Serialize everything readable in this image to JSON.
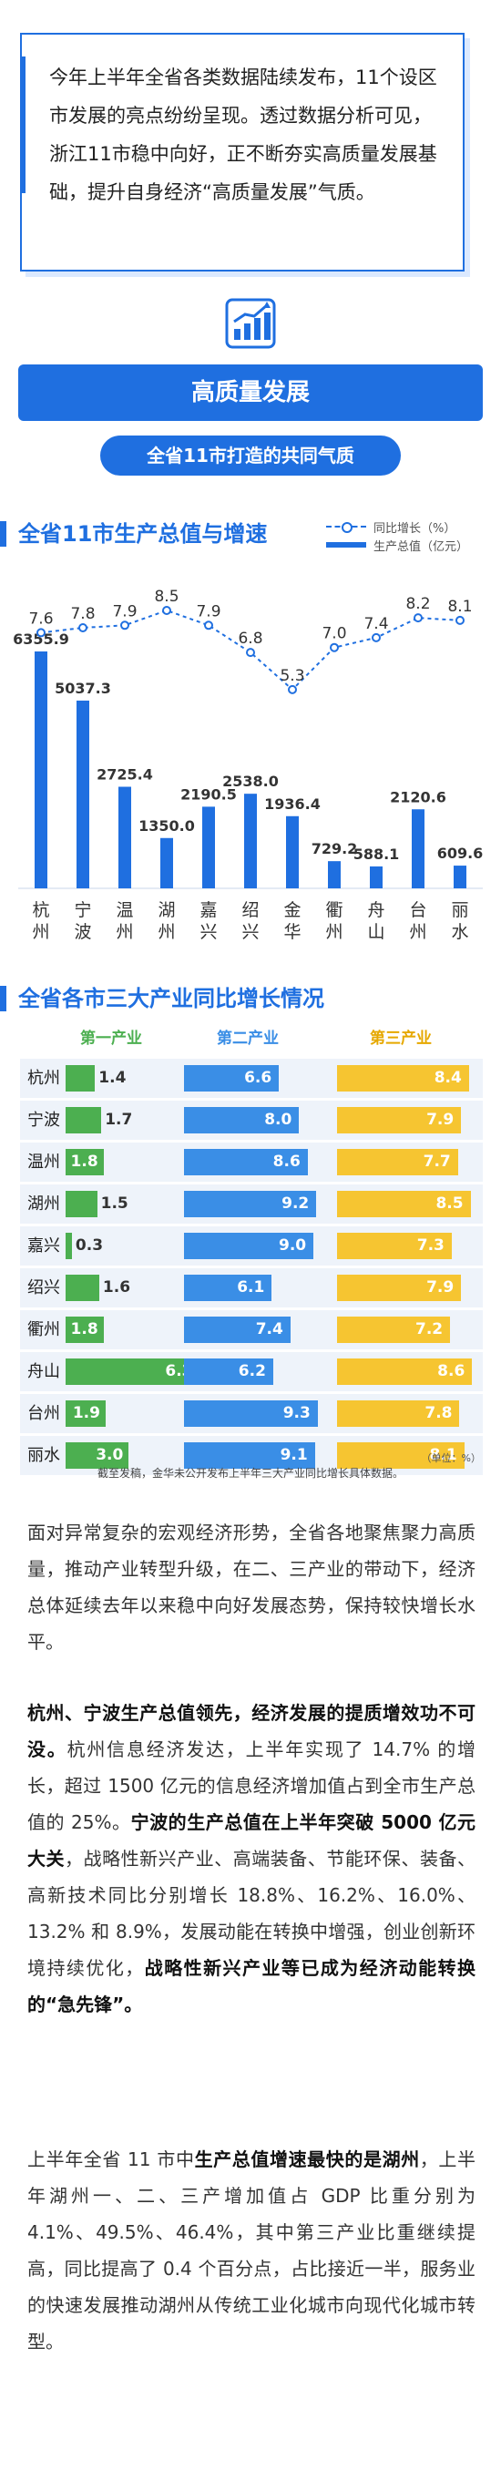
{
  "intro": {
    "text": "今年上半年全省各类数据陆续发布，11个设区市发展的亮点纷纷呈现。透过数据分析可见，浙江11市稳中向好，正不断夯实高质量发展基础，提升自身经济“高质量发展”气质。"
  },
  "banner": {
    "title": "高质量发展",
    "subtitle": "全省11市打造的共同气质"
  },
  "icons": {
    "header_icon": "bar-chart-growth-icon"
  },
  "colors": {
    "accent": "#1f6fe0",
    "primary": "#4caf50",
    "secondary": "#3a8ee6",
    "tertiary": "#f6c531"
  },
  "section1": {
    "title": "全省11市生产总值与增速",
    "legend_growth": "同比增长（%）",
    "legend_gdp": "生产总值（亿元）"
  },
  "chart_data": [
    {
      "type": "bar",
      "title": "全省11市生产总值与增速",
      "categories": [
        "杭州",
        "宁波",
        "温州",
        "湖州",
        "嘉兴",
        "绍兴",
        "金华",
        "衢州",
        "舟山",
        "台州",
        "丽水"
      ],
      "series": [
        {
          "name": "生产总值（亿元）",
          "type": "bar",
          "values": [
            6355.9,
            5037.3,
            2725.4,
            1350.0,
            2190.5,
            2538.0,
            1936.4,
            729.2,
            588.1,
            2120.6,
            609.6
          ]
        },
        {
          "name": "同比增长（%）",
          "type": "line",
          "values": [
            7.6,
            7.8,
            7.9,
            8.5,
            7.9,
            6.8,
            5.3,
            7.0,
            7.4,
            8.2,
            8.1
          ]
        }
      ]
    },
    {
      "type": "bar",
      "title": "全省各市三大产业同比增长情况",
      "categories": [
        "杭州",
        "宁波",
        "温州",
        "湖州",
        "嘉兴",
        "绍兴",
        "衢州",
        "舟山",
        "台州",
        "丽水"
      ],
      "series": [
        {
          "name": "第一产业",
          "values": [
            1.4,
            1.7,
            1.8,
            1.5,
            0.3,
            1.6,
            1.8,
            6.3,
            1.9,
            3.0
          ]
        },
        {
          "name": "第二产业",
          "values": [
            6.6,
            8.0,
            8.6,
            9.2,
            9.0,
            6.1,
            7.4,
            6.2,
            9.3,
            9.1
          ]
        },
        {
          "name": "第三产业",
          "values": [
            8.4,
            7.9,
            7.7,
            8.5,
            7.3,
            7.9,
            7.2,
            8.6,
            7.8,
            8.1
          ]
        }
      ],
      "unit": "（单位：%）"
    }
  ],
  "section2": {
    "title": "全省各市三大产业同比增长情况",
    "unit_note": "（单位：%）",
    "source_note": "截至发稿，金华未公开发布上半年三大产业同比增长具体数据。"
  },
  "paragraphs": {
    "p1": "面对异常复杂的宏观经济形势，全省各地聚焦聚力高质量，推动产业转型升级，在二、三产业的带动下，经济总体延续去年以来稳中向好发展态势，保持较快增长水平。",
    "p2_b1": "杭州、宁波生产总值领先，经济发展的提质增效功不可没。",
    "p2_t1": "杭州信息经济发达，上半年实现了 14.7% 的增长，超过 1500 亿元的信息经济增加值占到全市生产总值的 25%。",
    "p2_b2": "宁波的生产总值在上半年突破 5000 亿元大关",
    "p2_t2": "，战略性新兴产业、高端装备、节能环保、装备、高新技术同比分别增长 18.8%、16.2%、16.0%、13.2% 和 8.9%，发展动能在转换中增强，创业创新环境持续优化，",
    "p2_b3": "战略性新兴产业等已成为经济动能转换的“急先锋”。",
    "p3_t1": "上半年全省 11 市中",
    "p3_b1": "生产总值增速最快的是湖州",
    "p3_t2": "，上半年湖州一、二、三产增加值占 GDP 比重分别为 4.1%、49.5%、46.4%，其中第三产业比重继续提高，同比提高了 0.4 个百分点，占比接近一半，服务业的快速发展推动湖州从传统工业化城市向现代化城市转型。"
  }
}
